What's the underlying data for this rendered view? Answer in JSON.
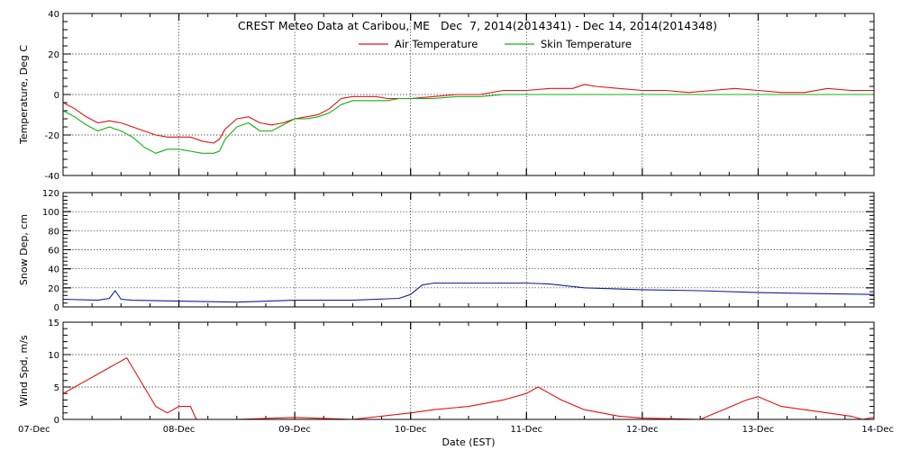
{
  "chart_data": {
    "type": "line",
    "title": "CREST Meteo Data at Caribou, ME   Dec  7, 2014(2014341) - Dec 14, 2014(2014348)",
    "xlabel": "Date (EST)",
    "x_tick_labels": [
      "07-Dec",
      "08-Dec",
      "09-Dec",
      "10-Dec",
      "11-Dec",
      "12-Dec",
      "13-Dec",
      "14-Dec"
    ],
    "xlim_days": [
      0,
      7
    ],
    "legend_position": "top-center",
    "panels": [
      {
        "ylabel": "Temperature, Deg C",
        "ylim": [
          -40,
          40
        ],
        "y_ticks": [
          -40,
          -20,
          0,
          20,
          40
        ],
        "y_tick_labels": [
          "-40",
          "-20",
          "0",
          "20",
          "40"
        ],
        "grid": true,
        "series": [
          {
            "name": "Air Temperature",
            "color": "#e01010",
            "x": [
              0.0,
              0.1,
              0.2,
              0.3,
              0.4,
              0.5,
              0.6,
              0.7,
              0.8,
              0.9,
              1.0,
              1.1,
              1.2,
              1.3,
              1.35,
              1.4,
              1.5,
              1.6,
              1.7,
              1.8,
              1.9,
              2.0,
              2.1,
              2.2,
              2.3,
              2.4,
              2.5,
              2.6,
              2.7,
              2.8,
              2.9,
              3.0,
              3.2,
              3.4,
              3.6,
              3.8,
              4.0,
              4.2,
              4.4,
              4.5,
              4.6,
              4.8,
              5.0,
              5.2,
              5.4,
              5.6,
              5.8,
              6.0,
              6.2,
              6.4,
              6.6,
              6.8,
              7.0
            ],
            "y": [
              -4,
              -7,
              -11,
              -14,
              -13,
              -14,
              -16,
              -18,
              -20,
              -21,
              -21,
              -21,
              -23,
              -24,
              -22,
              -17,
              -12,
              -11,
              -14,
              -15,
              -14,
              -12,
              -11,
              -10,
              -7,
              -2,
              -1,
              -1,
              -1,
              -2,
              -2,
              -2,
              -1,
              0,
              0,
              2,
              2,
              3,
              3,
              5,
              4,
              3,
              2,
              2,
              1,
              2,
              3,
              2,
              1,
              1,
              3,
              2,
              2
            ]
          },
          {
            "name": "Skin Temperature",
            "color": "#10b010",
            "x": [
              0.0,
              0.1,
              0.2,
              0.3,
              0.4,
              0.5,
              0.6,
              0.7,
              0.8,
              0.9,
              1.0,
              1.1,
              1.2,
              1.3,
              1.35,
              1.4,
              1.5,
              1.6,
              1.7,
              1.8,
              1.9,
              2.0,
              2.1,
              2.2,
              2.3,
              2.4,
              2.5,
              2.6,
              2.7,
              2.8,
              2.9,
              3.0,
              3.2,
              3.4,
              3.6,
              3.8,
              4.0,
              4.2,
              4.4,
              4.5,
              4.6,
              4.8,
              5.0,
              5.2,
              5.4,
              5.6,
              5.8,
              6.0,
              6.2,
              6.4,
              6.6,
              6.8,
              7.0
            ],
            "y": [
              -8,
              -11,
              -15,
              -18,
              -16,
              -18,
              -21,
              -26,
              -29,
              -27,
              -27,
              -28,
              -29,
              -29,
              -28,
              -22,
              -16,
              -14,
              -18,
              -18,
              -15,
              -12,
              -12,
              -11,
              -9,
              -5,
              -3,
              -3,
              -3,
              -3,
              -2,
              -2,
              -2,
              -1,
              -1,
              0,
              0,
              0,
              0,
              0,
              0,
              0,
              0,
              0,
              0,
              0,
              0,
              0,
              0,
              0,
              0,
              0,
              0
            ]
          }
        ]
      },
      {
        "ylabel": "Snow Dep, cm",
        "ylim": [
          0,
          120
        ],
        "y_ticks": [
          0,
          20,
          40,
          60,
          80,
          100,
          120
        ],
        "y_tick_labels": [
          "0",
          "20",
          "40",
          "60",
          "80",
          "100",
          "120"
        ],
        "grid": true,
        "series": [
          {
            "name": "",
            "color": "#102090",
            "x": [
              0.0,
              0.3,
              0.4,
              0.45,
              0.5,
              0.6,
              1.0,
              1.5,
              2.0,
              2.5,
              2.9,
              3.0,
              3.05,
              3.1,
              3.2,
              3.5,
              4.0,
              4.2,
              4.5,
              5.0,
              5.5,
              6.0,
              6.5,
              7.0
            ],
            "y": [
              8,
              7,
              9,
              17,
              8,
              7,
              6,
              5,
              7,
              7,
              9,
              13,
              18,
              23,
              25,
              25,
              25,
              24,
              20,
              18,
              17,
              15,
              14,
              13
            ]
          }
        ]
      },
      {
        "ylabel": "Wind Spd, m/s",
        "ylim": [
          0,
          15
        ],
        "y_ticks": [
          0,
          5,
          10,
          15
        ],
        "y_tick_labels": [
          "0",
          "5",
          "10",
          "15"
        ],
        "grid": true,
        "series": [
          {
            "name": "",
            "color": "#e01010",
            "x": [
              0.0,
              0.1,
              0.2,
              0.3,
              0.4,
              0.5,
              0.55,
              0.6,
              0.7,
              0.8,
              0.9,
              1.0,
              1.1,
              1.15,
              1.2,
              1.5,
              2.0,
              2.5,
              3.0,
              3.2,
              3.5,
              3.8,
              4.0,
              4.1,
              4.2,
              4.3,
              4.5,
              4.8,
              5.0,
              5.5,
              5.7,
              5.9,
              6.0,
              6.2,
              6.4,
              6.6,
              6.8,
              6.9,
              7.0
            ],
            "y": [
              4,
              5,
              6,
              7,
              8,
              9,
              9.5,
              8,
              5,
              2,
              1,
              2,
              2,
              0,
              0,
              0,
              0.3,
              0,
              1,
              1.5,
              2,
              3,
              4,
              5,
              4,
              3,
              1.5,
              0.5,
              0.2,
              0,
              1.5,
              3,
              3.5,
              2,
              1.5,
              1,
              0.5,
              0,
              0.3
            ]
          }
        ]
      }
    ]
  }
}
